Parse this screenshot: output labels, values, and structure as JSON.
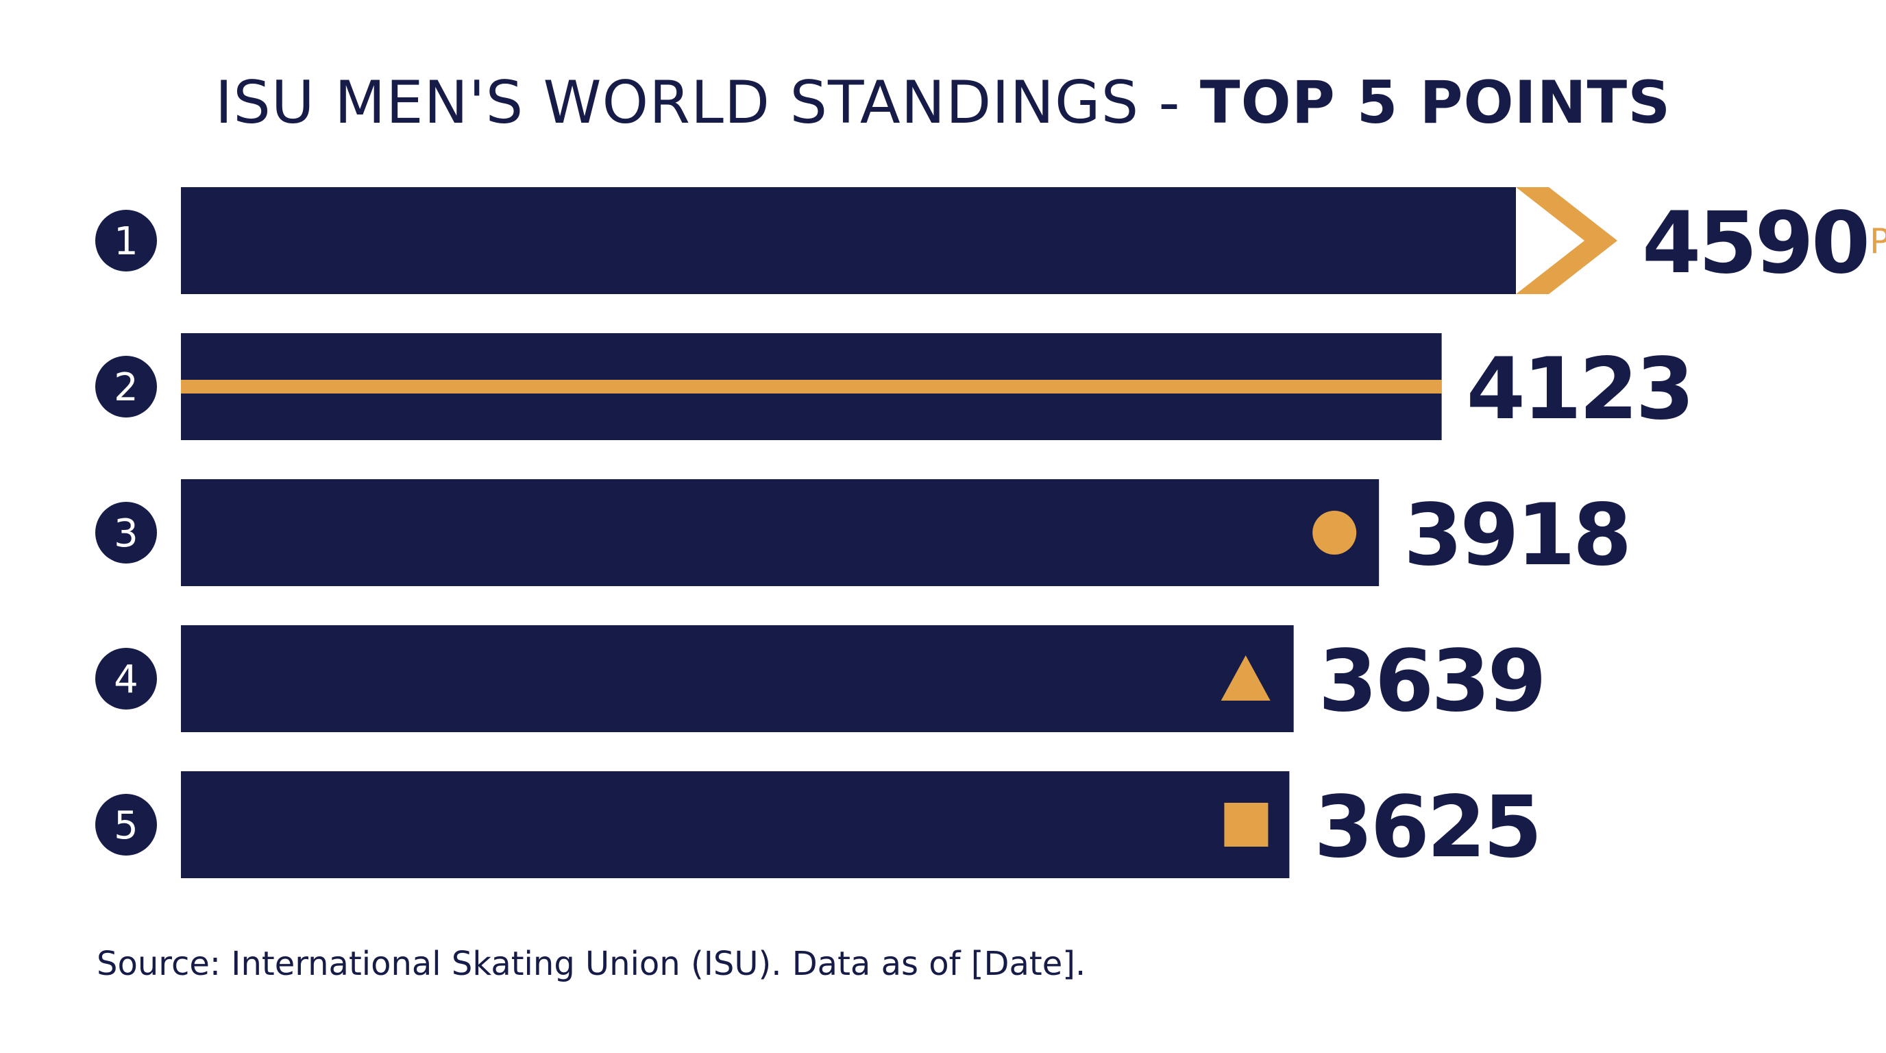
{
  "title": {
    "main": "ISU MEN'S WORLD STANDINGS - ",
    "emphasis": "TOP 5 POINTS"
  },
  "source": "Source: International Skating Union (ISU). Data as of [Date].",
  "colors": {
    "bar": "#161c47",
    "accent": "#e3a148",
    "text": "#161c47",
    "rank_text": "#ffffff"
  },
  "chart_data": {
    "type": "bar",
    "orientation": "horizontal",
    "title": "ISU MEN'S WORLD STANDINGS - TOP 5 POINTS",
    "categories": [
      "1",
      "2",
      "3",
      "4",
      "5"
    ],
    "values": [
      4590,
      4123,
      3918,
      3639,
      3625
    ],
    "unit_label": "Points",
    "markers": [
      "chevron",
      "stripe",
      "circle",
      "triangle",
      "square"
    ],
    "xlim": [
      0,
      4590
    ],
    "grid": false,
    "legend": "none"
  }
}
